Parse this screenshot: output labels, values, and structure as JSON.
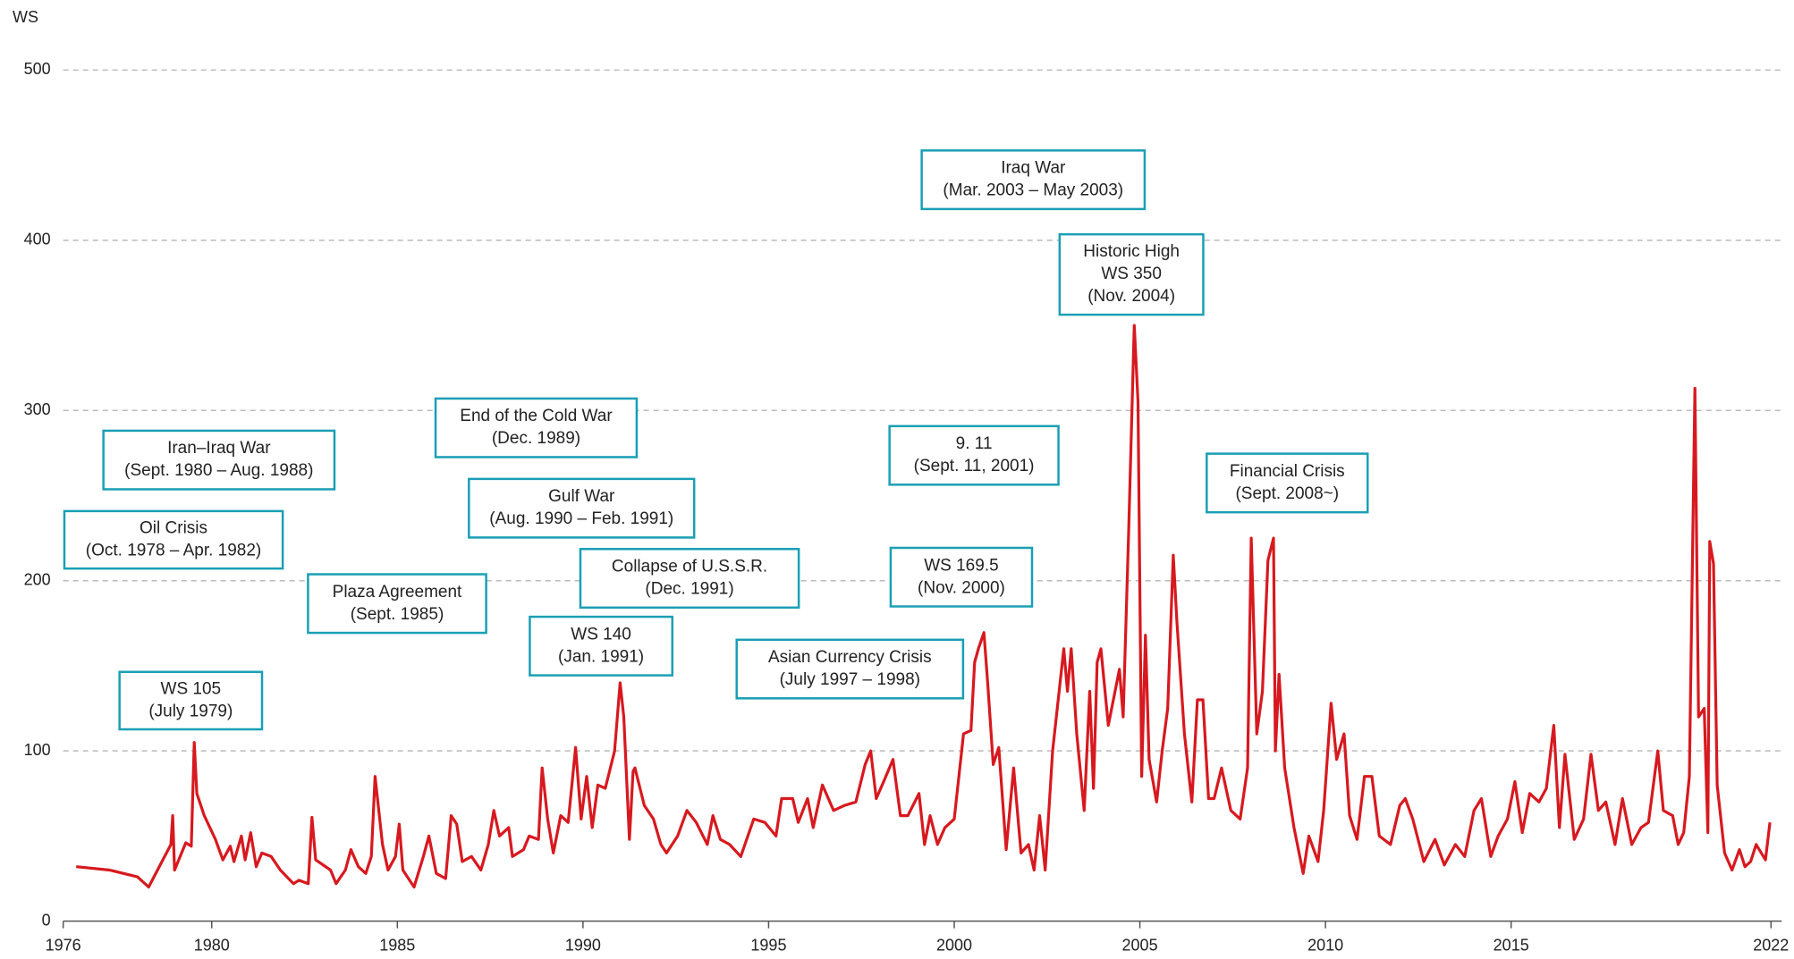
{
  "chart_data": {
    "type": "line",
    "y_label": "WS",
    "xlim": [
      1976,
      2022
    ],
    "xticks": [
      1976,
      1980,
      1985,
      1990,
      1995,
      2000,
      2005,
      2010,
      2015,
      2022
    ],
    "ylim": [
      0,
      500
    ],
    "yticks": [
      0,
      100,
      200,
      300,
      400,
      500
    ],
    "grid": true,
    "series": [
      {
        "color": "#d7191f",
        "x": [
          1976.35,
          1977.25,
          1978.0,
          1978.3,
          1978.9,
          1978.95,
          1979.0,
          1979.3,
          1979.45,
          1979.53,
          1979.6,
          1979.8,
          1980.1,
          1980.3,
          1980.5,
          1980.6,
          1980.8,
          1980.9,
          1981.05,
          1981.2,
          1981.35,
          1981.6,
          1981.85,
          1982.2,
          1982.35,
          1982.6,
          1982.7,
          1982.8,
          1983.2,
          1983.35,
          1983.6,
          1983.75,
          1983.95,
          1984.15,
          1984.3,
          1984.4,
          1984.6,
          1984.75,
          1984.95,
          1985.05,
          1985.15,
          1985.45,
          1985.7,
          1985.85,
          1986.05,
          1986.3,
          1986.45,
          1986.6,
          1986.75,
          1987.0,
          1987.25,
          1987.45,
          1987.6,
          1987.75,
          1988.0,
          1988.1,
          1988.4,
          1988.55,
          1988.8,
          1988.9,
          1989.05,
          1989.2,
          1989.4,
          1989.6,
          1989.8,
          1989.95,
          1990.1,
          1990.25,
          1990.4,
          1990.6,
          1990.85,
          1991.0,
          1991.1,
          1991.25,
          1991.35,
          1991.4,
          1991.65,
          1991.9,
          1992.1,
          1992.25,
          1992.55,
          1992.8,
          1993.05,
          1993.35,
          1993.5,
          1993.7,
          1993.95,
          1994.25,
          1994.6,
          1994.9,
          1995.2,
          1995.35,
          1995.65,
          1995.8,
          1996.05,
          1996.2,
          1996.45,
          1996.75,
          1997.05,
          1997.35,
          1997.6,
          1997.75,
          1997.9,
          1998.1,
          1998.35,
          1998.55,
          1998.75,
          1999.05,
          1999.2,
          1999.35,
          1999.55,
          1999.75,
          2000.0,
          2000.25,
          2000.45,
          2000.55,
          2000.65,
          2000.8,
          2000.9,
          2001.05,
          2001.2,
          2001.4,
          2001.6,
          2001.8,
          2002.0,
          2002.15,
          2002.3,
          2002.45,
          2002.65,
          2002.95,
          2003.05,
          2003.15,
          2003.3,
          2003.5,
          2003.65,
          2003.75,
          2003.85,
          2003.95,
          2004.15,
          2004.45,
          2004.55,
          2004.7,
          2004.85,
          2004.95,
          2005.05,
          2005.15,
          2005.25,
          2005.45,
          2005.6,
          2005.75,
          2005.9,
          2006.0,
          2006.2,
          2006.4,
          2006.55,
          2006.7,
          2006.85,
          2007.0,
          2007.2,
          2007.45,
          2007.7,
          2007.9,
          2008.0,
          2008.15,
          2008.3,
          2008.45,
          2008.6,
          2008.65,
          2008.75,
          2008.9,
          2009.15,
          2009.4,
          2009.55,
          2009.8,
          2009.95,
          2010.15,
          2010.3,
          2010.5,
          2010.65,
          2010.85,
          2011.05,
          2011.25,
          2011.45,
          2011.75,
          2012.0,
          2012.15,
          2012.35,
          2012.65,
          2012.95,
          2013.2,
          2013.5,
          2013.75,
          2014.0,
          2014.2,
          2014.45,
          2014.65,
          2014.9,
          2015.1,
          2015.3,
          2015.5,
          2015.75,
          2015.95,
          2016.15,
          2016.3,
          2016.45,
          2016.7,
          2016.95,
          2017.15,
          2017.35,
          2017.55,
          2017.8,
          2018.0,
          2018.25,
          2018.5,
          2018.7,
          2018.95,
          2019.1,
          2019.35,
          2019.5,
          2019.65,
          2019.8,
          2019.95,
          2020.05,
          2020.2,
          2020.3,
          2020.35,
          2020.45,
          2020.55,
          2020.75,
          2020.95,
          2021.15,
          2021.3,
          2021.45,
          2021.6,
          2021.85,
          2021.97
        ],
        "values": [
          32,
          30,
          26,
          20,
          45,
          62,
          30,
          46,
          44,
          105,
          75,
          62,
          48,
          36,
          44,
          35,
          50,
          36,
          52,
          32,
          40,
          38,
          30,
          22,
          24,
          22,
          61,
          36,
          30,
          22,
          30,
          42,
          32,
          28,
          38,
          85,
          45,
          30,
          38,
          57,
          30,
          20,
          38,
          50,
          28,
          25,
          62,
          57,
          35,
          38,
          30,
          45,
          65,
          50,
          55,
          38,
          42,
          50,
          48,
          90,
          60,
          40,
          62,
          58,
          102,
          60,
          85,
          55,
          80,
          78,
          100,
          140,
          120,
          48,
          88,
          90,
          68,
          60,
          45,
          40,
          50,
          65,
          58,
          45,
          62,
          48,
          45,
          38,
          60,
          58,
          50,
          72,
          72,
          58,
          72,
          55,
          80,
          65,
          68,
          70,
          92,
          100,
          72,
          82,
          95,
          62,
          62,
          75,
          45,
          62,
          45,
          55,
          60,
          110,
          112,
          152,
          160,
          169.5,
          140,
          92,
          102,
          42,
          90,
          40,
          45,
          30,
          62,
          30,
          100,
          160,
          135,
          160,
          110,
          65,
          135,
          78,
          152,
          160,
          115,
          148,
          120,
          230,
          350,
          305,
          85,
          168,
          95,
          70,
          100,
          125,
          215,
          175,
          110,
          70,
          130,
          130,
          72,
          72,
          90,
          65,
          60,
          90,
          225,
          110,
          135,
          212,
          225,
          100,
          145,
          90,
          55,
          28,
          50,
          35,
          65,
          128,
          95,
          110,
          62,
          48,
          85,
          85,
          50,
          45,
          68,
          72,
          60,
          35,
          48,
          33,
          45,
          38,
          65,
          72,
          38,
          50,
          60,
          82,
          52,
          75,
          70,
          78,
          115,
          55,
          98,
          48,
          60,
          98,
          65,
          70,
          45,
          72,
          45,
          55,
          58,
          100,
          65,
          62,
          45,
          52,
          85,
          313,
          120,
          125,
          52,
          223,
          210,
          80,
          40,
          30,
          42,
          32,
          35,
          45,
          36,
          58
        ]
      }
    ],
    "annotations": [
      {
        "lines": [
          "WS 105",
          "(July 1979)"
        ]
      },
      {
        "lines": [
          "Oil Crisis",
          "(Oct. 1978 – Apr. 1982)"
        ]
      },
      {
        "lines": [
          "Iran–Iraq War",
          "(Sept. 1980 – Aug. 1988)"
        ]
      },
      {
        "lines": [
          "Plaza Agreement",
          "(Sept. 1985)"
        ]
      },
      {
        "lines": [
          "End of the Cold War",
          "(Dec. 1989)"
        ]
      },
      {
        "lines": [
          "Gulf War",
          "(Aug. 1990 – Feb. 1991)"
        ]
      },
      {
        "lines": [
          "WS 140",
          "(Jan. 1991)"
        ]
      },
      {
        "lines": [
          "Collapse of U.S.S.R.",
          "(Dec. 1991)"
        ]
      },
      {
        "lines": [
          "Asian Currency Crisis",
          "(July 1997 – 1998)"
        ]
      },
      {
        "lines": [
          "9. 11",
          "(Sept. 11, 2001)"
        ]
      },
      {
        "lines": [
          "WS 169.5",
          "(Nov. 2000)"
        ]
      },
      {
        "lines": [
          "Iraq War",
          "(Mar. 2003 – May 2003)"
        ]
      },
      {
        "lines": [
          "Historic High",
          "WS 350",
          "(Nov. 2004)"
        ]
      },
      {
        "lines": [
          "Financial Crisis",
          "(Sept. 2008~)"
        ]
      }
    ]
  }
}
